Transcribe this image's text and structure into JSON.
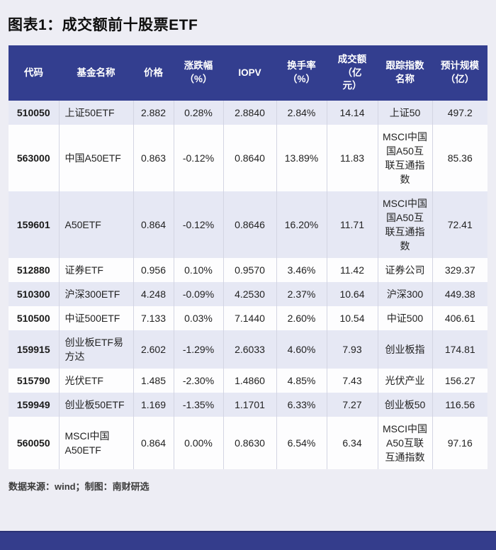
{
  "title": "图表1：成交额前十股票ETF",
  "source_note": "数据来源：wind；制图：南财研选",
  "colors": {
    "page_bg": "#ededf4",
    "header_bg": "#333e8f",
    "header_text": "#ffffff",
    "row_alt": "#e6e8f4",
    "row_even": "#fdfdfe",
    "cell_border": "#d3d5e3",
    "body_text": "#222222",
    "bottom_bar": "#343d8c"
  },
  "chart_data": {
    "type": "table",
    "title": "成交额前十股票ETF",
    "columns": [
      "代码",
      "基金名称",
      "价格",
      "涨跌幅\n（%）",
      "IOPV",
      "换手率\n（%）",
      "成交额\n（亿\n元）",
      "跟踪指数\n名称",
      "预计规模\n（亿）"
    ],
    "rows": [
      [
        "510050",
        "上证50ETF",
        "2.882",
        "0.28%",
        "2.8840",
        "2.84%",
        "14.14",
        "上证50",
        "497.2"
      ],
      [
        "563000",
        "中国A50ETF",
        "0.863",
        "-0.12%",
        "0.8640",
        "13.89%",
        "11.83",
        "MSCI中国国A50互联互通指数",
        "85.36"
      ],
      [
        "159601",
        "A50ETF",
        "0.864",
        "-0.12%",
        "0.8646",
        "16.20%",
        "11.71",
        "MSCI中国国A50互联互通指数",
        "72.41"
      ],
      [
        "512880",
        "证券ETF",
        "0.956",
        "0.10%",
        "0.9570",
        "3.46%",
        "11.42",
        "证券公司",
        "329.37"
      ],
      [
        "510300",
        "沪深300ETF",
        "4.248",
        "-0.09%",
        "4.2530",
        "2.37%",
        "10.64",
        "沪深300",
        "449.38"
      ],
      [
        "510500",
        "中证500ETF",
        "7.133",
        "0.03%",
        "7.1440",
        "2.60%",
        "10.54",
        "中证500",
        "406.61"
      ],
      [
        "159915",
        "创业板ETF易方达",
        "2.602",
        "-1.29%",
        "2.6033",
        "4.60%",
        "7.93",
        "创业板指",
        "174.81"
      ],
      [
        "515790",
        "光伏ETF",
        "1.485",
        "-2.30%",
        "1.4860",
        "4.85%",
        "7.43",
        "光伏产业",
        "156.27"
      ],
      [
        "159949",
        "创业板50ETF",
        "1.169",
        "-1.35%",
        "1.1701",
        "6.33%",
        "7.27",
        "创业板50",
        "116.56"
      ],
      [
        "560050",
        "MSCI中国A50ETF",
        "0.864",
        "0.00%",
        "0.8630",
        "6.54%",
        "6.34",
        "MSCI中国A50互联互通指数",
        "97.16"
      ]
    ]
  }
}
